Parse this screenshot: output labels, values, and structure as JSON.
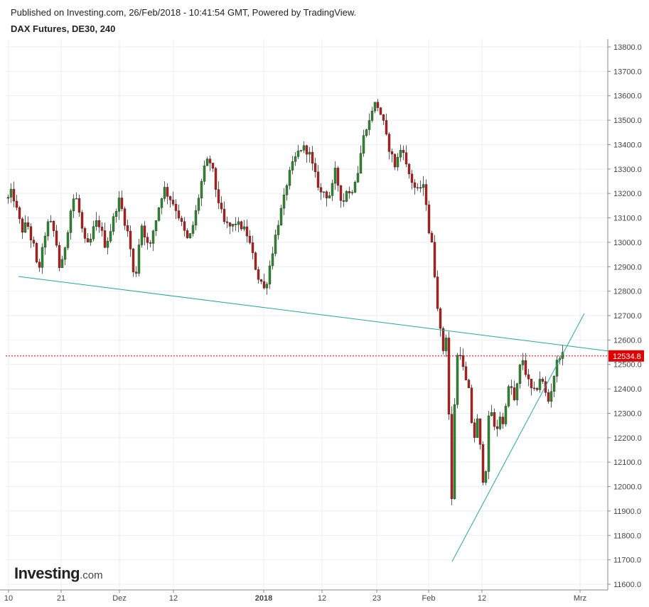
{
  "header": {
    "published": "Published on Investing.com, 26/Feb/2018 - 10:41:54 GMT, Powered by TradingView.",
    "title": "DAX Futures, DE30, 240"
  },
  "logo": {
    "main": "Investing",
    "suffix": ".com"
  },
  "colors": {
    "up": "#2e8b2e",
    "down": "#b5211c",
    "trendline": "#26a69a",
    "price_line": "#e00000",
    "grid": "#eeeeee",
    "price_tag_bg": "#e00000"
  },
  "chart_data": {
    "type": "candlestick",
    "title": "DAX Futures, DE30, 240",
    "y_axis": {
      "position": "right",
      "ylim": [
        11580,
        13830
      ],
      "ticks": [
        "13800.0",
        "13700.0",
        "13600.0",
        "13500.0",
        "13400.0",
        "13300.0",
        "13200.0",
        "13100.0",
        "13000.0",
        "12900.0",
        "12800.0",
        "12700.0",
        "12600.0",
        "12500.0",
        "12400.0",
        "12300.0",
        "12200.0",
        "12100.0",
        "12000.0",
        "11900.0",
        "11800.0",
        "11700.0",
        "11600.0"
      ]
    },
    "x_axis": {
      "ticks": [
        {
          "label": "10",
          "bold": false
        },
        {
          "label": "21",
          "bold": false
        },
        {
          "label": "Dez",
          "bold": false
        },
        {
          "label": "12",
          "bold": false
        },
        {
          "label": "2018",
          "bold": true
        },
        {
          "label": "12",
          "bold": false
        },
        {
          "label": "23",
          "bold": false
        },
        {
          "label": "Feb",
          "bold": false
        },
        {
          "label": "12",
          "bold": false
        },
        {
          "label": "Mrz",
          "bold": false
        }
      ]
    },
    "grid": true,
    "current_price": {
      "value": 12534.8,
      "label": "12534.8"
    },
    "price_path": [
      13180,
      13210,
      13150,
      13090,
      13040,
      13090,
      13020,
      12980,
      12870,
      12950,
      13040,
      13090,
      13060,
      12990,
      12870,
      12960,
      13050,
      13150,
      13200,
      13130,
      13040,
      12980,
      13000,
      13060,
      13090,
      13050,
      12990,
      13020,
      13080,
      13140,
      13180,
      13100,
      13050,
      12960,
      12820,
      12980,
      13080,
      13010,
      12970,
      13050,
      13110,
      13180,
      13220,
      13190,
      13170,
      13140,
      13100,
      13060,
      13010,
      13030,
      13090,
      13170,
      13250,
      13320,
      13340,
      13290,
      13200,
      13140,
      13080,
      13070,
      13060,
      13080,
      13070,
      13060,
      13040,
      12990,
      12930,
      12860,
      12840,
      12800,
      12880,
      12960,
      13040,
      13110,
      13170,
      13250,
      13300,
      13340,
      13370,
      13390,
      13380,
      13360,
      13300,
      13250,
      13200,
      13210,
      13180,
      13220,
      13300,
      13200,
      13160,
      13220,
      13190,
      13250,
      13290,
      13390,
      13470,
      13490,
      13560,
      13570,
      13530,
      13480,
      13400,
      13360,
      13310,
      13360,
      13400,
      13310,
      13270,
      13230,
      13210,
      13230,
      13220,
      13050,
      12980,
      12800,
      12650,
      12550,
      12650,
      11840,
      12360,
      12600,
      12500,
      12430,
      12380,
      12170,
      12280,
      12140,
      11960,
      12270,
      12310,
      12200,
      12300,
      12250,
      12380,
      12420,
      12350,
      12430,
      12540,
      12470,
      12420,
      12380,
      12400,
      12450,
      12410,
      12340,
      12400,
      12480,
      12540,
      12534.8
    ]
  }
}
